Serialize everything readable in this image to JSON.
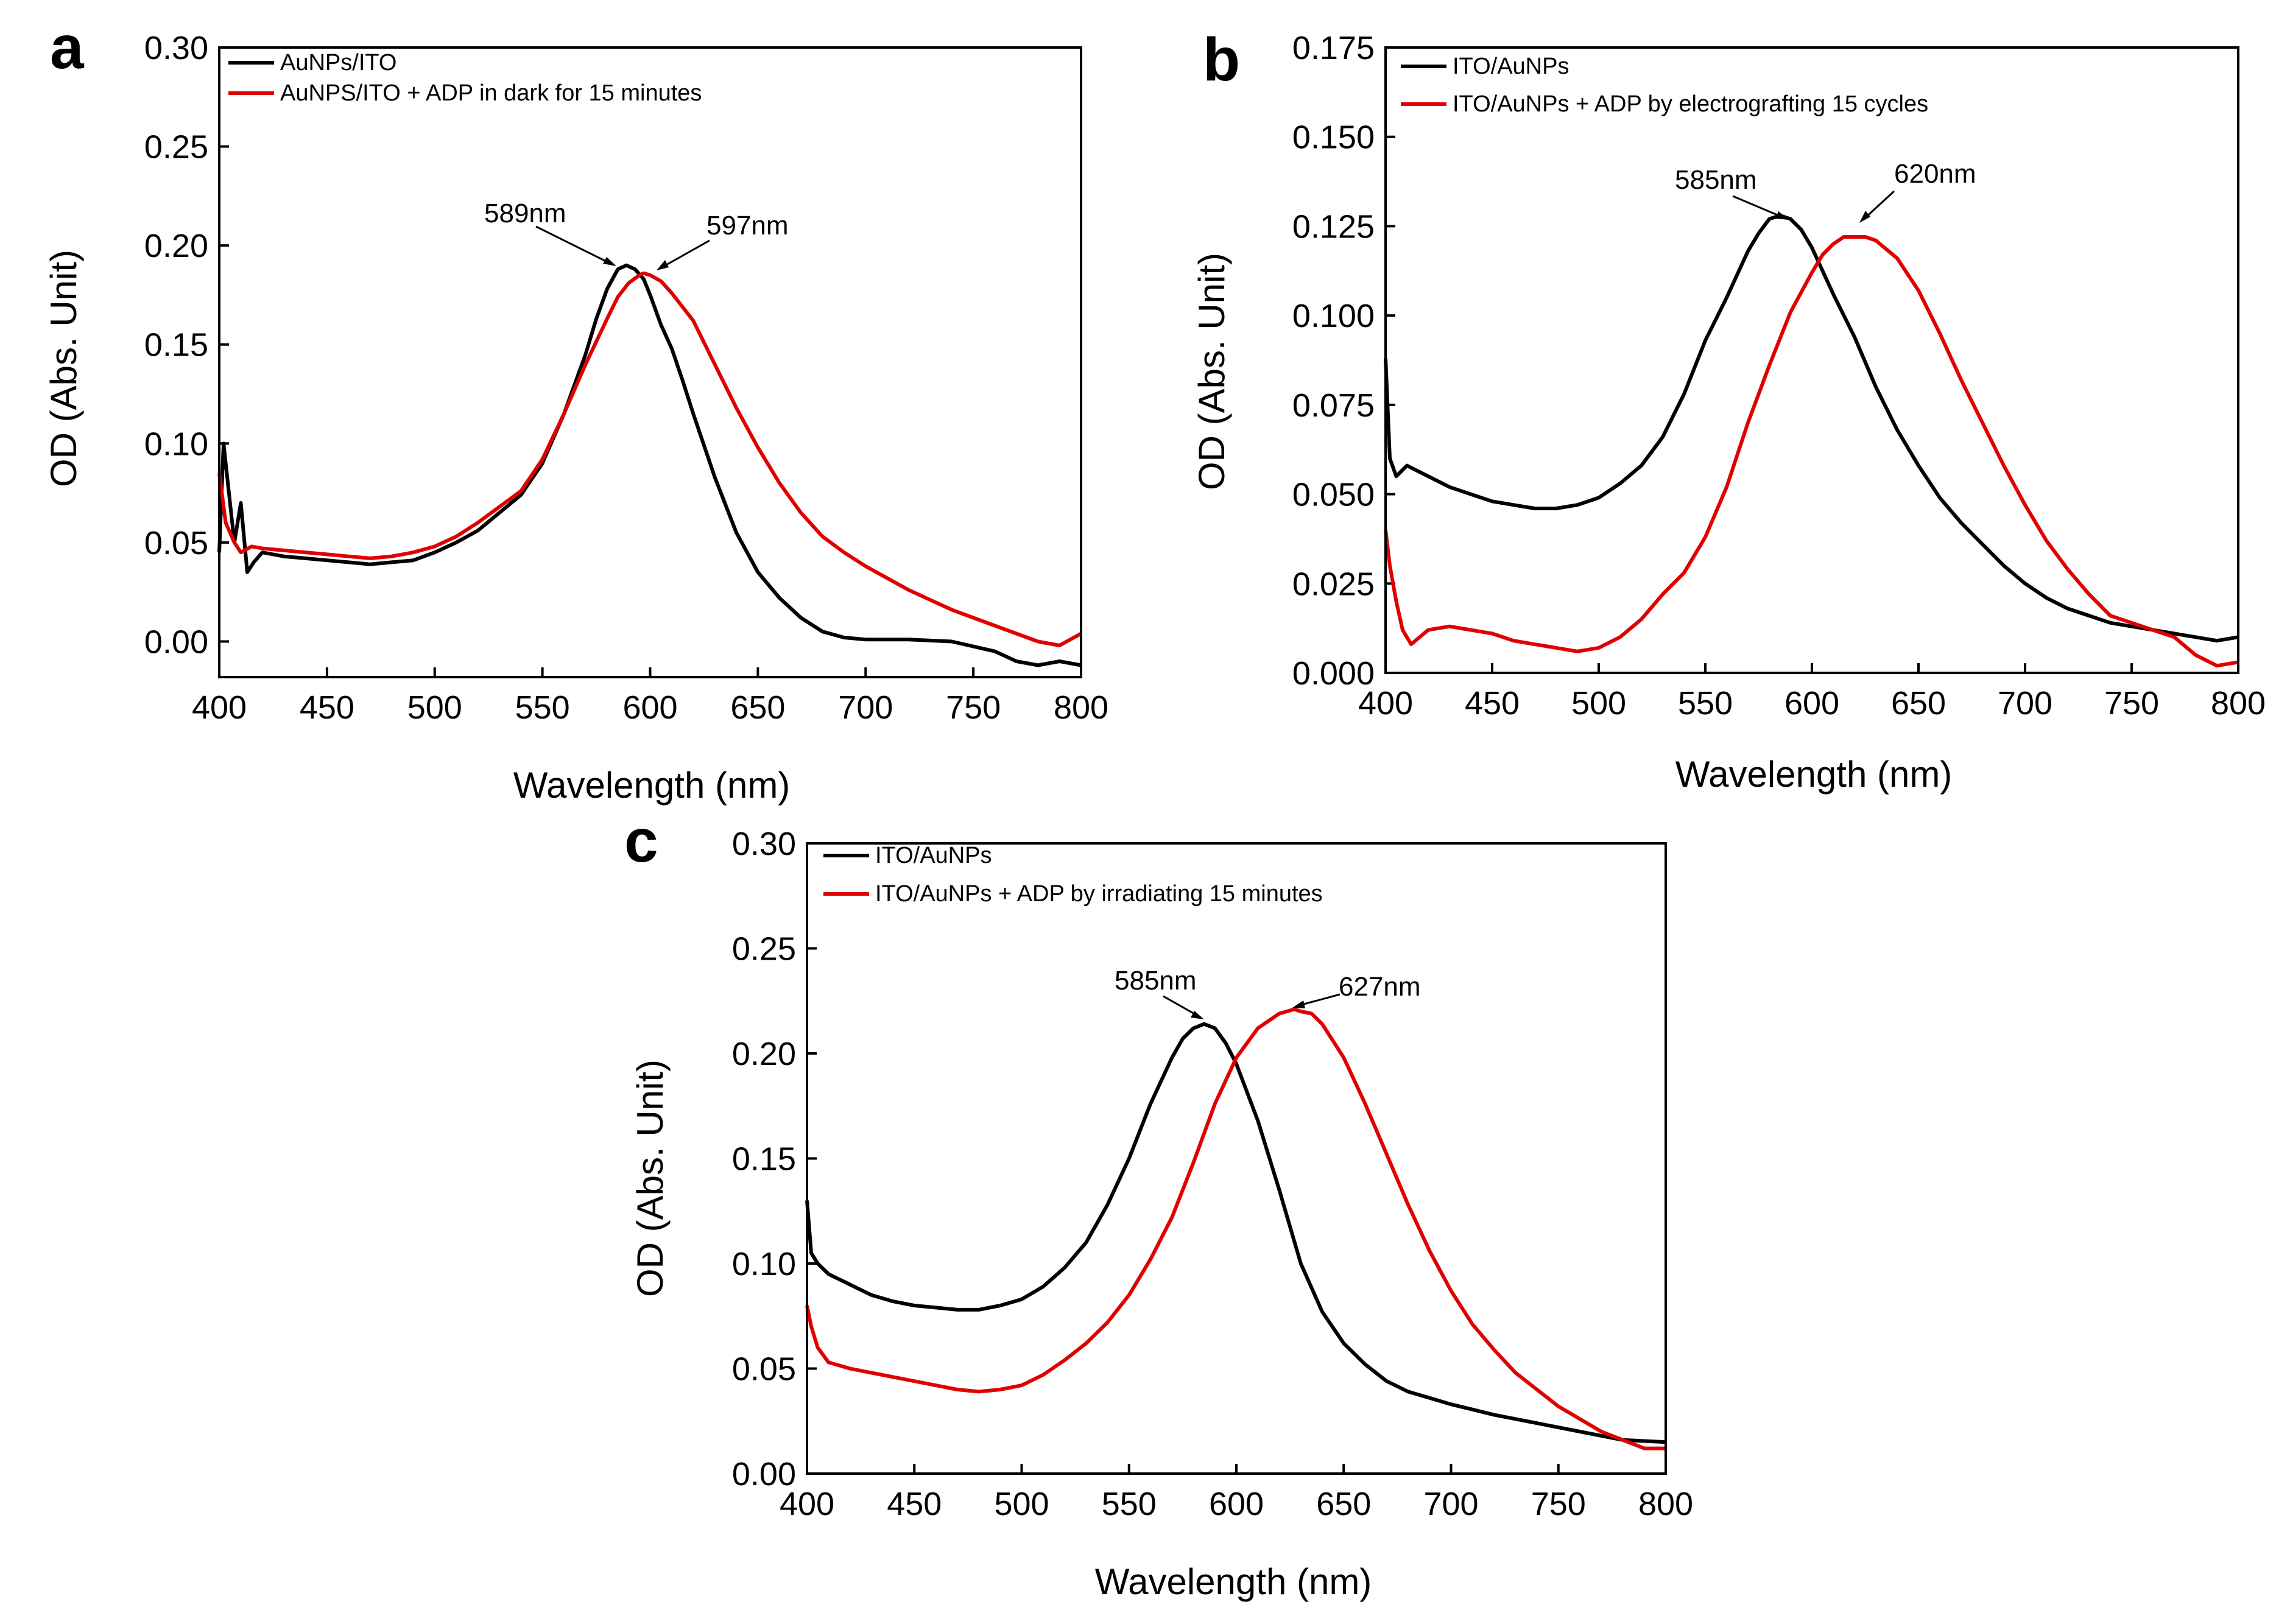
{
  "chart_data": [
    {
      "type": "line",
      "panel_label": "a",
      "xlabel": "Wavelength (nm)",
      "ylabel": "OD (Abs. Unit)",
      "xlim": [
        400,
        800
      ],
      "ylim": [
        -0.018,
        0.3
      ],
      "xticks": [
        400,
        450,
        500,
        550,
        600,
        650,
        700,
        750,
        800
      ],
      "xtick_labels": [
        "400",
        "450",
        "500",
        "550",
        "600",
        "650",
        "700",
        "750",
        "800"
      ],
      "yticks": [
        0,
        0.05,
        0.1,
        0.15,
        0.2,
        0.25,
        0.3
      ],
      "ytick_labels": [
        "0.00",
        "0.05",
        "0.10",
        "0.15",
        "0.20",
        "0.25",
        "0.30"
      ],
      "grid": false,
      "legend_position": "top-left",
      "series": [
        {
          "name": "AuNPs/ITO",
          "color": "#000000",
          "x": [
            400,
            402,
            404,
            407,
            410,
            413,
            416,
            420,
            430,
            440,
            450,
            460,
            470,
            480,
            490,
            500,
            510,
            520,
            530,
            540,
            550,
            560,
            570,
            575,
            580,
            585,
            589,
            593,
            597,
            600,
            605,
            610,
            615,
            620,
            630,
            640,
            650,
            660,
            670,
            680,
            690,
            700,
            720,
            740,
            760,
            770,
            780,
            790,
            800
          ],
          "y": [
            0.045,
            0.1,
            0.08,
            0.05,
            0.07,
            0.035,
            0.04,
            0.045,
            0.043,
            0.042,
            0.041,
            0.04,
            0.039,
            0.04,
            0.041,
            0.045,
            0.05,
            0.056,
            0.065,
            0.074,
            0.09,
            0.115,
            0.145,
            0.163,
            0.178,
            0.188,
            0.19,
            0.188,
            0.183,
            0.175,
            0.16,
            0.148,
            0.132,
            0.115,
            0.083,
            0.055,
            0.035,
            0.022,
            0.012,
            0.005,
            0.002,
            0.001,
            0.001,
            0.0,
            -0.005,
            -0.01,
            -0.012,
            -0.01,
            -0.012
          ]
        },
        {
          "name": "AuNPS/ITO + ADP in dark for 15 minutes",
          "color": "#e00000",
          "x": [
            400,
            403,
            407,
            410,
            415,
            420,
            430,
            440,
            450,
            460,
            470,
            480,
            490,
            500,
            510,
            520,
            530,
            540,
            550,
            560,
            570,
            580,
            585,
            590,
            595,
            597,
            600,
            605,
            610,
            620,
            630,
            640,
            650,
            660,
            670,
            680,
            690,
            700,
            710,
            720,
            730,
            740,
            750,
            760,
            770,
            780,
            790,
            800
          ],
          "y": [
            0.085,
            0.06,
            0.05,
            0.045,
            0.048,
            0.047,
            0.046,
            0.045,
            0.044,
            0.043,
            0.042,
            0.043,
            0.045,
            0.048,
            0.053,
            0.06,
            0.068,
            0.076,
            0.092,
            0.115,
            0.14,
            0.163,
            0.174,
            0.181,
            0.185,
            0.186,
            0.185,
            0.182,
            0.176,
            0.162,
            0.14,
            0.118,
            0.098,
            0.08,
            0.065,
            0.053,
            0.045,
            0.038,
            0.032,
            0.026,
            0.021,
            0.016,
            0.012,
            0.008,
            0.004,
            0.0,
            -0.002,
            0.004
          ]
        }
      ],
      "annotations": [
        {
          "text": "589nm",
          "x": 589,
          "y": 0.19
        },
        {
          "text": "597nm",
          "x": 597,
          "y": 0.186
        }
      ]
    },
    {
      "type": "line",
      "panel_label": "b",
      "xlabel": "Wavelength (nm)",
      "ylabel": "OD (Abs. Unit)",
      "xlim": [
        400,
        800
      ],
      "ylim": [
        0,
        0.175
      ],
      "xticks": [
        400,
        450,
        500,
        550,
        600,
        650,
        700,
        750,
        800
      ],
      "xtick_labels": [
        "400",
        "450",
        "500",
        "550",
        "600",
        "650",
        "700",
        "750",
        "800"
      ],
      "yticks": [
        0,
        0.025,
        0.05,
        0.075,
        0.1,
        0.125,
        0.15,
        0.175
      ],
      "ytick_labels": [
        "0.000",
        "0.025",
        "0.050",
        "0.075",
        "0.100",
        "0.125",
        "0.150",
        "0.175"
      ],
      "grid": false,
      "legend_position": "top-left",
      "series": [
        {
          "name": "ITO/AuNPs",
          "color": "#000000",
          "x": [
            400,
            402,
            405,
            410,
            420,
            430,
            440,
            450,
            460,
            470,
            480,
            490,
            500,
            510,
            520,
            530,
            540,
            550,
            560,
            570,
            575,
            580,
            585,
            590,
            595,
            600,
            610,
            620,
            630,
            640,
            650,
            660,
            670,
            680,
            690,
            700,
            710,
            720,
            730,
            740,
            750,
            760,
            770,
            780,
            790,
            800
          ],
          "y": [
            0.088,
            0.06,
            0.055,
            0.058,
            0.055,
            0.052,
            0.05,
            0.048,
            0.047,
            0.046,
            0.046,
            0.047,
            0.049,
            0.053,
            0.058,
            0.066,
            0.078,
            0.093,
            0.105,
            0.118,
            0.123,
            0.127,
            0.128,
            0.127,
            0.124,
            0.119,
            0.106,
            0.094,
            0.08,
            0.068,
            0.058,
            0.049,
            0.042,
            0.036,
            0.03,
            0.025,
            0.021,
            0.018,
            0.016,
            0.014,
            0.013,
            0.012,
            0.011,
            0.01,
            0.009,
            0.01
          ]
        },
        {
          "name": "ITO/AuNPs + ADP by electrografting 15 cycles",
          "color": "#e00000",
          "x": [
            400,
            402,
            405,
            408,
            412,
            420,
            430,
            440,
            450,
            460,
            470,
            480,
            490,
            500,
            510,
            520,
            530,
            540,
            550,
            560,
            570,
            580,
            590,
            600,
            605,
            610,
            615,
            620,
            625,
            630,
            640,
            650,
            660,
            670,
            680,
            690,
            700,
            710,
            720,
            730,
            740,
            750,
            760,
            770,
            780,
            790,
            800
          ],
          "y": [
            0.04,
            0.03,
            0.02,
            0.012,
            0.008,
            0.012,
            0.013,
            0.012,
            0.011,
            0.009,
            0.008,
            0.007,
            0.006,
            0.007,
            0.01,
            0.015,
            0.022,
            0.028,
            0.038,
            0.052,
            0.07,
            0.086,
            0.101,
            0.112,
            0.117,
            0.12,
            0.122,
            0.122,
            0.122,
            0.121,
            0.116,
            0.107,
            0.095,
            0.082,
            0.07,
            0.058,
            0.047,
            0.037,
            0.029,
            0.022,
            0.016,
            0.014,
            0.012,
            0.01,
            0.005,
            0.002,
            0.003
          ]
        }
      ],
      "annotations": [
        {
          "text": "585nm",
          "x": 585,
          "y": 0.128
        },
        {
          "text": "620nm",
          "x": 620,
          "y": 0.122
        }
      ]
    },
    {
      "type": "line",
      "panel_label": "c",
      "xlabel": "Wavelength (nm)",
      "ylabel": "OD (Abs. Unit)",
      "xlim": [
        400,
        800
      ],
      "ylim": [
        0,
        0.3
      ],
      "xticks": [
        400,
        450,
        500,
        550,
        600,
        650,
        700,
        750,
        800
      ],
      "xtick_labels": [
        "400",
        "450",
        "500",
        "550",
        "600",
        "650",
        "700",
        "750",
        "800"
      ],
      "yticks": [
        0,
        0.05,
        0.1,
        0.15,
        0.2,
        0.25,
        0.3
      ],
      "ytick_labels": [
        "0.00",
        "0.05",
        "0.10",
        "0.15",
        "0.20",
        "0.25",
        "0.30"
      ],
      "grid": false,
      "legend_position": "top-left",
      "series": [
        {
          "name": "ITO/AuNPs",
          "color": "#000000",
          "x": [
            400,
            402,
            405,
            410,
            420,
            430,
            440,
            450,
            460,
            470,
            480,
            490,
            500,
            510,
            520,
            530,
            540,
            550,
            560,
            570,
            575,
            580,
            585,
            590,
            595,
            600,
            610,
            620,
            630,
            640,
            650,
            660,
            670,
            680,
            690,
            700,
            720,
            740,
            760,
            780,
            800
          ],
          "y": [
            0.13,
            0.105,
            0.1,
            0.095,
            0.09,
            0.085,
            0.082,
            0.08,
            0.079,
            0.078,
            0.078,
            0.08,
            0.083,
            0.089,
            0.098,
            0.11,
            0.128,
            0.15,
            0.176,
            0.198,
            0.207,
            0.212,
            0.214,
            0.212,
            0.205,
            0.195,
            0.168,
            0.135,
            0.1,
            0.077,
            0.062,
            0.052,
            0.044,
            0.039,
            0.036,
            0.033,
            0.028,
            0.024,
            0.02,
            0.016,
            0.015
          ]
        },
        {
          "name": "ITO/AuNPs + ADP by irradiating 15 minutes",
          "color": "#e00000",
          "x": [
            400,
            402,
            405,
            410,
            420,
            430,
            440,
            450,
            460,
            470,
            480,
            490,
            500,
            510,
            520,
            530,
            540,
            550,
            560,
            570,
            580,
            590,
            600,
            610,
            620,
            627,
            630,
            635,
            640,
            650,
            660,
            670,
            680,
            690,
            700,
            710,
            720,
            730,
            740,
            750,
            760,
            770,
            780,
            790,
            800
          ],
          "y": [
            0.08,
            0.07,
            0.06,
            0.053,
            0.05,
            0.048,
            0.046,
            0.044,
            0.042,
            0.04,
            0.039,
            0.04,
            0.042,
            0.047,
            0.054,
            0.062,
            0.072,
            0.085,
            0.102,
            0.122,
            0.148,
            0.176,
            0.198,
            0.212,
            0.219,
            0.221,
            0.22,
            0.219,
            0.214,
            0.198,
            0.176,
            0.152,
            0.128,
            0.106,
            0.087,
            0.071,
            0.059,
            0.048,
            0.04,
            0.032,
            0.026,
            0.02,
            0.016,
            0.012,
            0.012
          ]
        }
      ],
      "annotations": [
        {
          "text": "585nm",
          "x": 585,
          "y": 0.214
        },
        {
          "text": "627nm",
          "x": 627,
          "y": 0.221
        }
      ]
    }
  ]
}
